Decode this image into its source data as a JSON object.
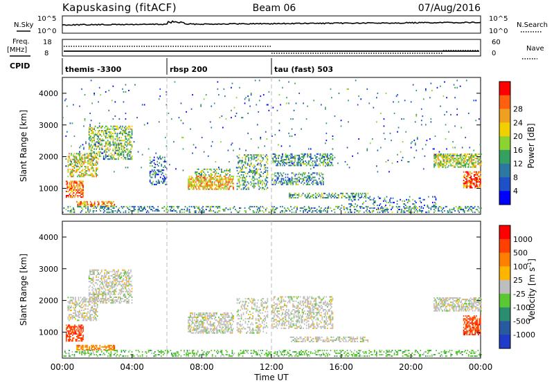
{
  "header": {
    "station": "Kapuskasing (fitACF)",
    "beam": "Beam 06",
    "date": "07/Aug/2016"
  },
  "noise_panel": {
    "left_label": "N.Sky",
    "right_label": "N.Search",
    "left_ticks": [
      "10^5",
      "10^0"
    ],
    "right_ticks": [
      "10^5",
      "10^0"
    ]
  },
  "freq_panel": {
    "left_label_1": "Freq.",
    "left_label_2": "[MHz]",
    "right_label": "Nave",
    "left_ticks": [
      "18",
      "8"
    ],
    "right_ticks": [
      "60",
      "0"
    ]
  },
  "cpid": {
    "label": "CPID",
    "segments": [
      {
        "name": "themis -3300",
        "start_h": 0
      },
      {
        "name": "rbsp 200",
        "start_h": 6
      },
      {
        "name": "tau (fast) 503",
        "start_h": 12
      }
    ]
  },
  "xaxis": {
    "title": "Time UT",
    "ticks": [
      "00:00",
      "04:00",
      "08:00",
      "12:00",
      "16:00",
      "20:00",
      "00:00"
    ],
    "range_h": [
      0,
      24
    ],
    "tick_hours": [
      0,
      4,
      8,
      12,
      16,
      20,
      24
    ]
  },
  "chart_data": [
    {
      "type": "heatmap",
      "title": "Power",
      "ylabel": "Slant Range [km]",
      "yticks": [
        1000,
        2000,
        3000,
        4000
      ],
      "ylim": [
        180,
        4500
      ],
      "xlim_hours": [
        0,
        24
      ],
      "colorbar": {
        "label": "Power [dB]",
        "ticks": [
          "4",
          "8",
          "12",
          "16",
          "20",
          "24",
          "28"
        ],
        "range": [
          0,
          30
        ],
        "colors": [
          "#0000ff",
          "#1e50c8",
          "#2d78a0",
          "#35a060",
          "#8cd230",
          "#f0d000",
          "#f0a020",
          "#ff6010",
          "#ff0000"
        ]
      },
      "scatter_regions": [
        {
          "t": [
            0.3,
            2.0
          ],
          "r": [
            1350,
            2100
          ],
          "typ": 18,
          "density": 0.5
        },
        {
          "t": [
            1.5,
            4.0
          ],
          "r": [
            1900,
            2950
          ],
          "typ": 14,
          "density": 0.45
        },
        {
          "t": [
            0.2,
            1.2
          ],
          "r": [
            700,
            1200
          ],
          "typ": 24,
          "density": 0.65
        },
        {
          "t": [
            0.8,
            3.0
          ],
          "r": [
            420,
            600
          ],
          "typ": 22,
          "density": 0.55
        },
        {
          "t": [
            5.0,
            6.0
          ],
          "r": [
            1100,
            2000
          ],
          "typ": 8,
          "density": 0.3
        },
        {
          "t": [
            7.2,
            9.8
          ],
          "r": [
            950,
            1400
          ],
          "typ": 20,
          "density": 0.6
        },
        {
          "t": [
            7.6,
            9.6
          ],
          "r": [
            1400,
            1600
          ],
          "typ": 14,
          "density": 0.4
        },
        {
          "t": [
            10.0,
            11.8
          ],
          "r": [
            950,
            2050
          ],
          "typ": 12,
          "density": 0.35
        },
        {
          "t": [
            12.0,
            15.5
          ],
          "r": [
            1700,
            2100
          ],
          "typ": 10,
          "density": 0.45
        },
        {
          "t": [
            12.0,
            15.0
          ],
          "r": [
            1100,
            1500
          ],
          "typ": 10,
          "density": 0.4
        },
        {
          "t": [
            13.0,
            17.5
          ],
          "r": [
            680,
            830
          ],
          "typ": 12,
          "density": 0.45
        },
        {
          "t": [
            16.0,
            21.5
          ],
          "r": [
            350,
            750
          ],
          "typ": 8,
          "density": 0.15
        },
        {
          "t": [
            21.3,
            24.0
          ],
          "r": [
            1650,
            2100
          ],
          "typ": 16,
          "density": 0.6
        },
        {
          "t": [
            23.0,
            24.0
          ],
          "r": [
            1000,
            1500
          ],
          "typ": 26,
          "density": 0.6
        },
        {
          "t": [
            0.0,
            24.0
          ],
          "r": [
            220,
            420
          ],
          "typ": 10,
          "density": 0.3
        },
        {
          "t": [
            0.0,
            24.0
          ],
          "r": [
            1500,
            4400
          ],
          "typ": 8,
          "density": 0.015
        }
      ]
    },
    {
      "type": "heatmap",
      "title": "Velocity",
      "ylabel": "Slant Range [km]",
      "yticks": [
        1000,
        2000,
        3000,
        4000
      ],
      "ylim": [
        180,
        4500
      ],
      "xlim_hours": [
        0,
        24
      ],
      "colorbar": {
        "label": "Velocity [m s^-1]",
        "ticks": [
          "1000",
          "500",
          "100",
          "25",
          "-25",
          "-100",
          "-500",
          "-1000"
        ],
        "colors": [
          "#1e3cc8",
          "#285aa0",
          "#2a8c70",
          "#5ac832",
          "#bebebe",
          "#ffb400",
          "#ff8000",
          "#ff4000",
          "#ff0000"
        ]
      },
      "scatter_regions": [
        {
          "t": [
            0.3,
            2.0
          ],
          "r": [
            1350,
            2100
          ],
          "cls": 4,
          "density": 0.45
        },
        {
          "t": [
            1.5,
            4.0
          ],
          "r": [
            1900,
            2950
          ],
          "cls": 4,
          "density": 0.45
        },
        {
          "t": [
            0.2,
            1.2
          ],
          "r": [
            700,
            1200
          ],
          "cls": 7,
          "density": 0.6
        },
        {
          "t": [
            0.8,
            3.0
          ],
          "r": [
            420,
            600
          ],
          "cls": 6,
          "density": 0.6
        },
        {
          "t": [
            7.2,
            9.8
          ],
          "r": [
            950,
            1600
          ],
          "cls": 4,
          "density": 0.55
        },
        {
          "t": [
            10.0,
            11.8
          ],
          "r": [
            950,
            2050
          ],
          "cls": 4,
          "density": 0.3
        },
        {
          "t": [
            12.0,
            15.5
          ],
          "r": [
            1100,
            2100
          ],
          "cls": 4,
          "density": 0.4
        },
        {
          "t": [
            13.0,
            17.5
          ],
          "r": [
            680,
            830
          ],
          "cls": 4,
          "density": 0.45
        },
        {
          "t": [
            21.3,
            24.0
          ],
          "r": [
            1650,
            2100
          ],
          "cls": 4,
          "density": 0.6
        },
        {
          "t": [
            23.0,
            24.0
          ],
          "r": [
            900,
            1500
          ],
          "cls": 7,
          "density": 0.6
        },
        {
          "t": [
            0.0,
            24.0
          ],
          "r": [
            220,
            420
          ],
          "cls": 3,
          "density": 0.3
        }
      ]
    }
  ]
}
